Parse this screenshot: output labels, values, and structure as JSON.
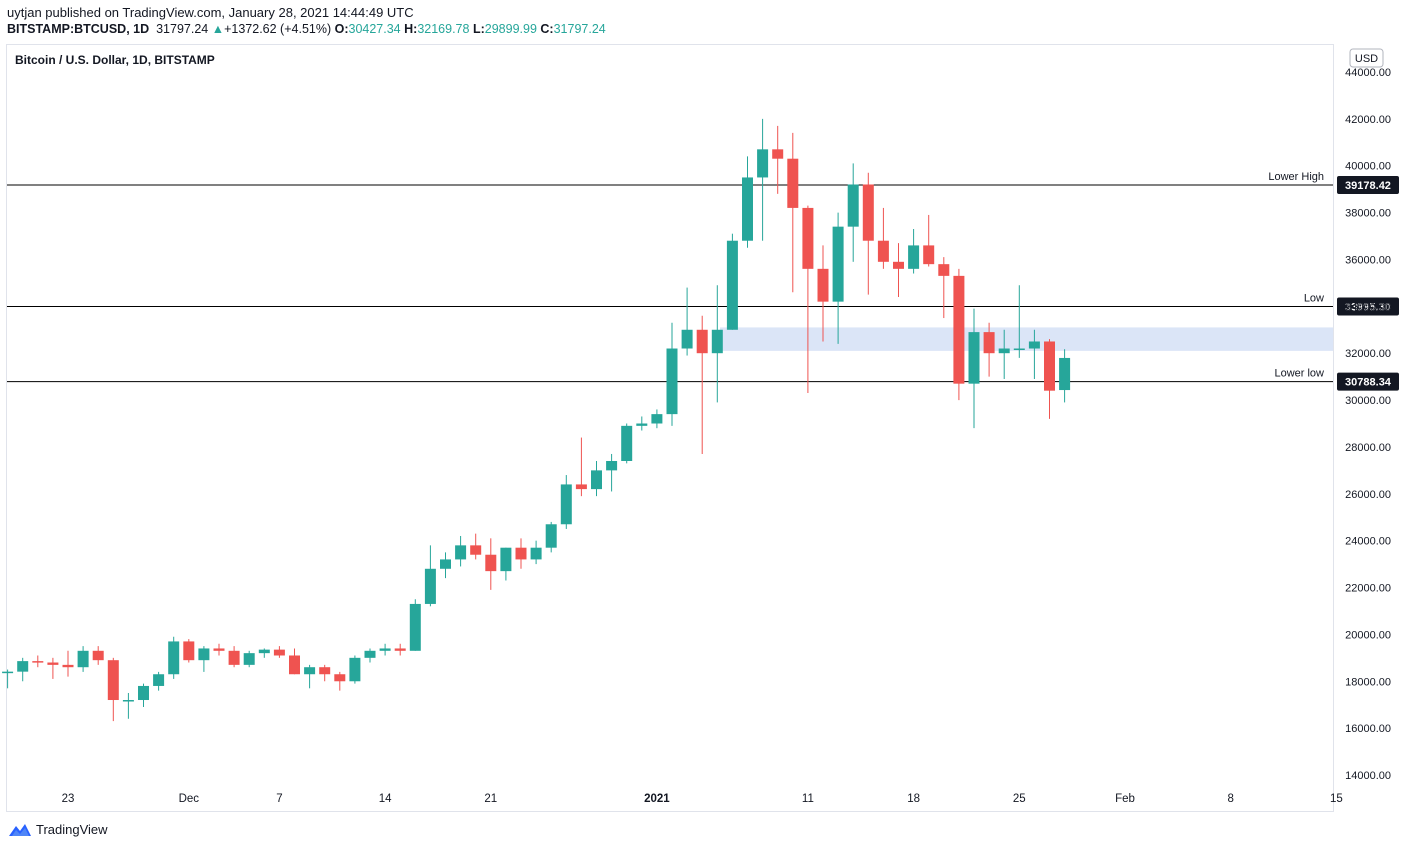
{
  "header": {
    "published_line": "uytjan published on TradingView.com, January 28, 2021 14:44:49 UTC",
    "symbol": "BITSTAMP:BTCUSD, 1D",
    "last": "31797.24",
    "change_arrow": "▲",
    "change": "+1372.62 (+4.51%)",
    "open_label": "O:",
    "open": "30427.34",
    "high_label": "H:",
    "high": "32169.78",
    "low_label": "L:",
    "low": "29899.99",
    "close_label": "C:",
    "close": "31797.24"
  },
  "footer": {
    "brand": "TradingView",
    "brand_icon": "tradingview-logo-icon"
  },
  "colors": {
    "up": "#26a69a",
    "down": "#ef5350",
    "zone": "#dbe5f7",
    "line": "#000000",
    "axis_text": "#131722"
  },
  "chart_data": {
    "type": "candlestick",
    "title": "Bitcoin / U.S. Dollar, 1D, BITSTAMP",
    "currency": "USD",
    "ylim": [
      13500,
      44800
    ],
    "y_ticks": [
      14000,
      16000,
      18000,
      20000,
      22000,
      24000,
      26000,
      28000,
      30000,
      32000,
      34000,
      36000,
      38000,
      40000,
      42000,
      44000
    ],
    "y_tick_labels": [
      "14000.00",
      "16000.00",
      "18000.00",
      "20000.00",
      "22000.00",
      "24000.00",
      "26000.00",
      "28000.00",
      "30000.00",
      "32000.00",
      "34000.00",
      "36000.00",
      "38000.00",
      "40000.00",
      "42000.00",
      "44000.00"
    ],
    "x_labels": [
      {
        "day": 0,
        "label": "23",
        "bold": false
      },
      {
        "day": 8,
        "label": "Dec",
        "bold": false
      },
      {
        "day": 14,
        "label": "7",
        "bold": false
      },
      {
        "day": 21,
        "label": "14",
        "bold": false
      },
      {
        "day": 28,
        "label": "21",
        "bold": false
      },
      {
        "day": 39,
        "label": "2021",
        "bold": true
      },
      {
        "day": 49,
        "label": "11",
        "bold": false
      },
      {
        "day": 56,
        "label": "18",
        "bold": false
      },
      {
        "day": 63,
        "label": "25",
        "bold": false
      },
      {
        "day": 70,
        "label": "Feb",
        "bold": false
      },
      {
        "day": 77,
        "label": "8",
        "bold": false
      },
      {
        "day": 84,
        "label": "15",
        "bold": false
      }
    ],
    "first_candle_day": -4,
    "candles": [
      [
        18370,
        18500,
        17700,
        18410
      ],
      [
        18410,
        19000,
        18000,
        18860
      ],
      [
        18860,
        19100,
        18600,
        18800
      ],
      [
        18800,
        19000,
        18100,
        18700
      ],
      [
        18700,
        19300,
        18200,
        18600
      ],
      [
        18600,
        19500,
        18400,
        19300
      ],
      [
        19300,
        19500,
        18700,
        18900
      ],
      [
        18900,
        19000,
        16300,
        17200
      ],
      [
        17200,
        17500,
        16400,
        17200
      ],
      [
        17200,
        17900,
        16900,
        17800
      ],
      [
        17800,
        18400,
        17600,
        18300
      ],
      [
        18300,
        19900,
        18100,
        19700
      ],
      [
        19700,
        19800,
        18800,
        18900
      ],
      [
        18900,
        19500,
        18400,
        19400
      ],
      [
        19400,
        19600,
        19100,
        19300
      ],
      [
        19300,
        19500,
        18600,
        18700
      ],
      [
        18700,
        19300,
        18600,
        19200
      ],
      [
        19200,
        19400,
        19000,
        19350
      ],
      [
        19350,
        19500,
        19000,
        19100
      ],
      [
        19100,
        19400,
        18300,
        18300
      ],
      [
        18300,
        18700,
        17700,
        18600
      ],
      [
        18600,
        18700,
        18000,
        18300
      ],
      [
        18300,
        18400,
        17600,
        18000
      ],
      [
        18000,
        19100,
        17900,
        19000
      ],
      [
        19000,
        19400,
        18800,
        19300
      ],
      [
        19300,
        19600,
        19100,
        19400
      ],
      [
        19400,
        19600,
        19100,
        19300
      ],
      [
        19300,
        21500,
        19300,
        21300
      ],
      [
        21300,
        23800,
        21200,
        22800
      ],
      [
        22800,
        23500,
        22400,
        23200
      ],
      [
        23200,
        24200,
        22900,
        23800
      ],
      [
        23800,
        24300,
        23200,
        23400
      ],
      [
        23400,
        24100,
        21900,
        22700
      ],
      [
        22700,
        23700,
        22300,
        23700
      ],
      [
        23700,
        24100,
        22800,
        23200
      ],
      [
        23200,
        24000,
        23000,
        23700
      ],
      [
        23700,
        24800,
        23500,
        24700
      ],
      [
        24700,
        26800,
        24500,
        26400
      ],
      [
        26400,
        28400,
        25900,
        26200
      ],
      [
        26200,
        27400,
        25900,
        27000
      ],
      [
        27000,
        27700,
        26100,
        27400
      ],
      [
        27400,
        29000,
        27300,
        28900
      ],
      [
        28900,
        29300,
        28700,
        29000
      ],
      [
        29000,
        29600,
        28800,
        29400
      ],
      [
        29400,
        33300,
        28900,
        32200
      ],
      [
        32200,
        34800,
        31900,
        33000
      ],
      [
        33000,
        33600,
        27700,
        32000
      ],
      [
        32000,
        34900,
        29900,
        33000
      ],
      [
        33000,
        37100,
        33000,
        36800
      ],
      [
        36800,
        40400,
        36500,
        39500
      ],
      [
        39500,
        42000,
        36800,
        40700
      ],
      [
        40700,
        41700,
        38800,
        40300
      ],
      [
        40300,
        41400,
        34600,
        38200
      ],
      [
        38200,
        38300,
        30300,
        35600
      ],
      [
        35600,
        36600,
        32500,
        34200
      ],
      [
        34200,
        38000,
        32400,
        37400
      ],
      [
        37400,
        40100,
        35900,
        39200
      ],
      [
        39200,
        39700,
        34500,
        36800
      ],
      [
        36800,
        38200,
        35600,
        35900
      ],
      [
        35900,
        36700,
        34400,
        35600
      ],
      [
        35600,
        37300,
        35400,
        36600
      ],
      [
        36600,
        37900,
        35700,
        35800
      ],
      [
        35800,
        36100,
        33500,
        35300
      ],
      [
        35300,
        35600,
        30000,
        30700
      ],
      [
        30700,
        33900,
        28800,
        32900
      ],
      [
        32900,
        33300,
        31000,
        32000
      ],
      [
        32000,
        33000,
        30900,
        32200
      ],
      [
        32200,
        34900,
        31800,
        32200
      ],
      [
        32200,
        33000,
        30900,
        32500
      ],
      [
        32500,
        32600,
        29200,
        30400
      ],
      [
        30427.34,
        32169.78,
        29899.99,
        31797.24
      ]
    ],
    "zone": {
      "low": 32100,
      "high": 33100
    },
    "levels": [
      {
        "value": 39178.42,
        "label": "Lower High",
        "price_label": "39178.42"
      },
      {
        "value": 33995.3,
        "label": "Low",
        "price_label": "33995.30"
      },
      {
        "value": 30788.34,
        "label": "Lower low",
        "price_label": "30788.34"
      }
    ]
  }
}
